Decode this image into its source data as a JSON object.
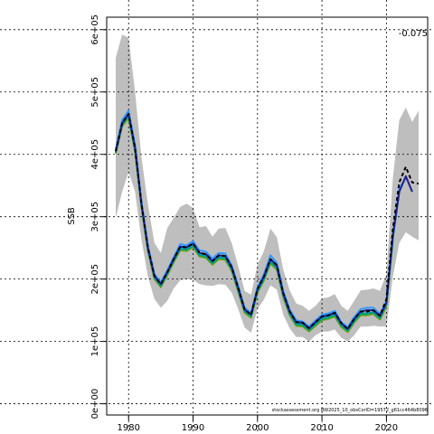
{
  "chart_data": {
    "type": "line",
    "title": "",
    "xlabel": "",
    "ylabel": "SSB",
    "xlim": [
      1976.6,
      2026.4
    ],
    "ylim": [
      -18000.0,
      620000.0
    ],
    "x_ticks": [
      1980,
      1990,
      2000,
      2010,
      2020
    ],
    "y_ticks": [
      0,
      100000,
      200000,
      300000,
      400000,
      500000,
      600000
    ],
    "y_tick_labels": [
      "0e+00",
      "1e+05",
      "2e+05",
      "3e+05",
      "4e+05",
      "5e+05",
      "6e+05"
    ],
    "grid": true,
    "annotation": "-0.075",
    "footer": "stockassessment.org BW2025_10_obsCorID=19572_g61cc464b8096",
    "confidence_band": {
      "color": "#bebebe",
      "x": [
        1978,
        1979,
        1980,
        1981,
        1982,
        1983,
        1984,
        1985,
        1986,
        1987,
        1988,
        1989,
        1990,
        1991,
        1992,
        1993,
        1994,
        1995,
        1996,
        1997,
        1998,
        1999,
        2000,
        2001,
        2002,
        2003,
        2004,
        2005,
        2006,
        2007,
        2008,
        2009,
        2010,
        2011,
        2012,
        2013,
        2014,
        2015,
        2016,
        2017,
        2018,
        2019,
        2020,
        2021,
        2022,
        2023,
        2024,
        2025
      ],
      "upper": [
        555000,
        592000,
        587000,
        500000,
        395000,
        320000,
        258000,
        242000,
        282000,
        298000,
        316000,
        321000,
        314000,
        283000,
        285000,
        268000,
        281000,
        282000,
        258000,
        221000,
        181000,
        175000,
        223000,
        245000,
        281000,
        267000,
        215000,
        182000,
        161000,
        157000,
        149000,
        157000,
        169000,
        171000,
        176000,
        157000,
        149000,
        165000,
        182000,
        183000,
        185000,
        181000,
        208000,
        362000,
        455000,
        475000,
        452000,
        470000
      ],
      "lower": [
        298000,
        340000,
        372000,
        340000,
        263000,
        204000,
        168000,
        154000,
        165000,
        185000,
        198000,
        200000,
        199000,
        192000,
        190000,
        189000,
        192000,
        191000,
        178000,
        152000,
        122000,
        114000,
        152000,
        167000,
        190000,
        183000,
        143000,
        121000,
        107000,
        107000,
        100000,
        110000,
        116000,
        116000,
        119000,
        106000,
        100000,
        110000,
        124000,
        124000,
        125000,
        124000,
        124000,
        204000,
        258000,
        275000,
        268000,
        262000
      ]
    },
    "series": [
      {
        "color": "#000000",
        "x": [
          1978,
          1979,
          1980,
          1981,
          1982,
          1983,
          1984,
          1985,
          1986,
          1987,
          1988,
          1989,
          1990,
          1991,
          1992,
          1993,
          1994,
          1995,
          1996,
          1997,
          1998,
          1999,
          2000,
          2001,
          2002,
          2003,
          2004,
          2005,
          2006,
          2007,
          2008,
          2009,
          2010,
          2011,
          2012,
          2013,
          2014,
          2015,
          2016,
          2017,
          2018,
          2019,
          2020,
          2021,
          2022,
          2023,
          2024,
          2025
        ],
        "values": [
          405000,
          450000,
          465000,
          410000,
          320000,
          250000,
          205000,
          192000,
          211000,
          232000,
          252000,
          251000,
          257000,
          242000,
          240000,
          229000,
          238000,
          237000,
          219000,
          186000,
          151000,
          143000,
          184000,
          204000,
          232000,
          222000,
          177000,
          148000,
          131000,
          130000,
          121000,
          131000,
          140000,
          142000,
          146000,
          129000,
          120000,
          136000,
          148000,
          148000,
          150000,
          141000,
          168000,
          280000,
          355000,
          380000,
          355000,
          353000
        ]
      },
      {
        "color": "#1f1f8f",
        "x": [
          1978,
          1979,
          1980,
          1981,
          1982,
          1983,
          1984,
          1985,
          1986,
          1987,
          1988,
          1989,
          1990,
          1991,
          1992,
          1993,
          1994,
          1995,
          1996,
          1997,
          1998,
          1999,
          2000,
          2001,
          2002,
          2003,
          2004,
          2005,
          2006,
          2007,
          2008,
          2009,
          2010,
          2011,
          2012,
          2013,
          2014,
          2015,
          2016,
          2017,
          2018,
          2019,
          2020,
          2021,
          2022,
          2023,
          2024
        ],
        "values": [
          405000,
          450000,
          465000,
          410000,
          320000,
          250000,
          205000,
          192000,
          211000,
          232000,
          252000,
          251000,
          257000,
          242000,
          240000,
          229000,
          238000,
          237000,
          219000,
          186000,
          151000,
          143000,
          184000,
          204000,
          232000,
          222000,
          177000,
          148000,
          131000,
          130000,
          121000,
          131000,
          140000,
          142000,
          146000,
          129000,
          120000,
          136000,
          148000,
          150000,
          150000,
          141000,
          162000,
          270000,
          340000,
          365000,
          340000
        ]
      },
      {
        "color": "#3399ff",
        "x": [
          1978,
          1979,
          1980,
          1981,
          1982,
          1983,
          1984,
          1985,
          1986,
          1987,
          1988,
          1989,
          1990,
          1991,
          1992,
          1993,
          1994,
          1995,
          1996,
          1997,
          1998,
          1999,
          2000,
          2001,
          2002,
          2003,
          2004,
          2005,
          2006,
          2007,
          2008,
          2009,
          2010,
          2011,
          2012,
          2013,
          2014,
          2015,
          2016,
          2017,
          2018,
          2019,
          2020,
          2021,
          2022,
          2023
        ],
        "values": [
          408000,
          455000,
          470000,
          415000,
          324000,
          254000,
          208000,
          195000,
          214000,
          235000,
          256000,
          254000,
          261000,
          246000,
          244000,
          233000,
          242000,
          241000,
          222000,
          189000,
          154000,
          146000,
          187000,
          208000,
          238000,
          226000,
          181000,
          151000,
          134000,
          132000,
          124000,
          134000,
          143000,
          145000,
          149000,
          131000,
          123000,
          139000,
          152000,
          154000,
          154000,
          144000,
          165000,
          270000,
          345000,
          362000
        ]
      },
      {
        "color": "#009999",
        "x": [
          1978,
          1979,
          1980,
          1981,
          1982,
          1983,
          1984,
          1985,
          1986,
          1987,
          1988,
          1989,
          1990,
          1991,
          1992,
          1993,
          1994,
          1995,
          1996,
          1997,
          1998,
          1999,
          2000,
          2001,
          2002,
          2003,
          2004,
          2005,
          2006,
          2007,
          2008,
          2009,
          2010,
          2011,
          2012,
          2013,
          2014,
          2015,
          2016,
          2017,
          2018,
          2019,
          2020,
          2021,
          2022
        ],
        "values": [
          403000,
          448000,
          462000,
          407000,
          318000,
          248000,
          203000,
          190000,
          209000,
          230000,
          249000,
          248000,
          254000,
          239000,
          237000,
          226000,
          235000,
          234000,
          216000,
          183000,
          149000,
          141000,
          181000,
          201000,
          228000,
          218000,
          174000,
          145000,
          128000,
          127000,
          119000,
          128000,
          137000,
          139000,
          143000,
          126000,
          118000,
          133000,
          145000,
          145000,
          147000,
          138000,
          160000,
          265000,
          340000
        ]
      },
      {
        "color": "#33aa33",
        "x": [
          1978,
          1979,
          1980,
          1981,
          1982,
          1983,
          1984,
          1985,
          1986,
          1987,
          1988,
          1989,
          1990,
          1991,
          1992,
          1993,
          1994,
          1995,
          1996,
          1997,
          1998,
          1999,
          2000,
          2001,
          2002,
          2003,
          2004,
          2005,
          2006,
          2007,
          2008,
          2009,
          2010,
          2011,
          2012,
          2013,
          2014,
          2015,
          2016,
          2017,
          2018,
          2019,
          2020,
          2021
        ],
        "values": [
          402000,
          446000,
          460000,
          405000,
          316000,
          246000,
          201000,
          188000,
          207000,
          228000,
          247000,
          246000,
          252000,
          237000,
          235000,
          224000,
          233000,
          232000,
          214000,
          181000,
          147000,
          139000,
          179000,
          199000,
          226000,
          216000,
          172000,
          143000,
          126000,
          125000,
          117000,
          126000,
          135000,
          137000,
          141000,
          124000,
          116000,
          131000,
          143000,
          143000,
          145000,
          136000,
          158000,
          262000
        ]
      },
      {
        "color": "#999900",
        "x": [
          1978,
          1979,
          1980,
          1981,
          1982,
          1983,
          1984,
          1985,
          1986,
          1987,
          1988,
          1989,
          1990,
          1991,
          1992,
          1993,
          1994,
          1995,
          1996,
          1997,
          1998,
          1999,
          2000,
          2001,
          2002,
          2003,
          2004,
          2005,
          2006,
          2007,
          2008,
          2009,
          2010,
          2011,
          2012,
          2013,
          2014,
          2015,
          2016,
          2017,
          2018,
          2019,
          2020
        ],
        "values": [
          401000,
          445000,
          458000,
          404000,
          315000,
          245000,
          200000,
          187000,
          206000,
          227000,
          246000,
          245000,
          251000,
          236000,
          234000,
          223000,
          232000,
          231000,
          213000,
          180000,
          146000,
          138000,
          178000,
          198000,
          225000,
          215000,
          171000,
          142000,
          125000,
          124000,
          116000,
          125000,
          134000,
          136000,
          140000,
          123000,
          115000,
          130000,
          142000,
          142000,
          144000,
          135000,
          156000
        ]
      }
    ]
  }
}
